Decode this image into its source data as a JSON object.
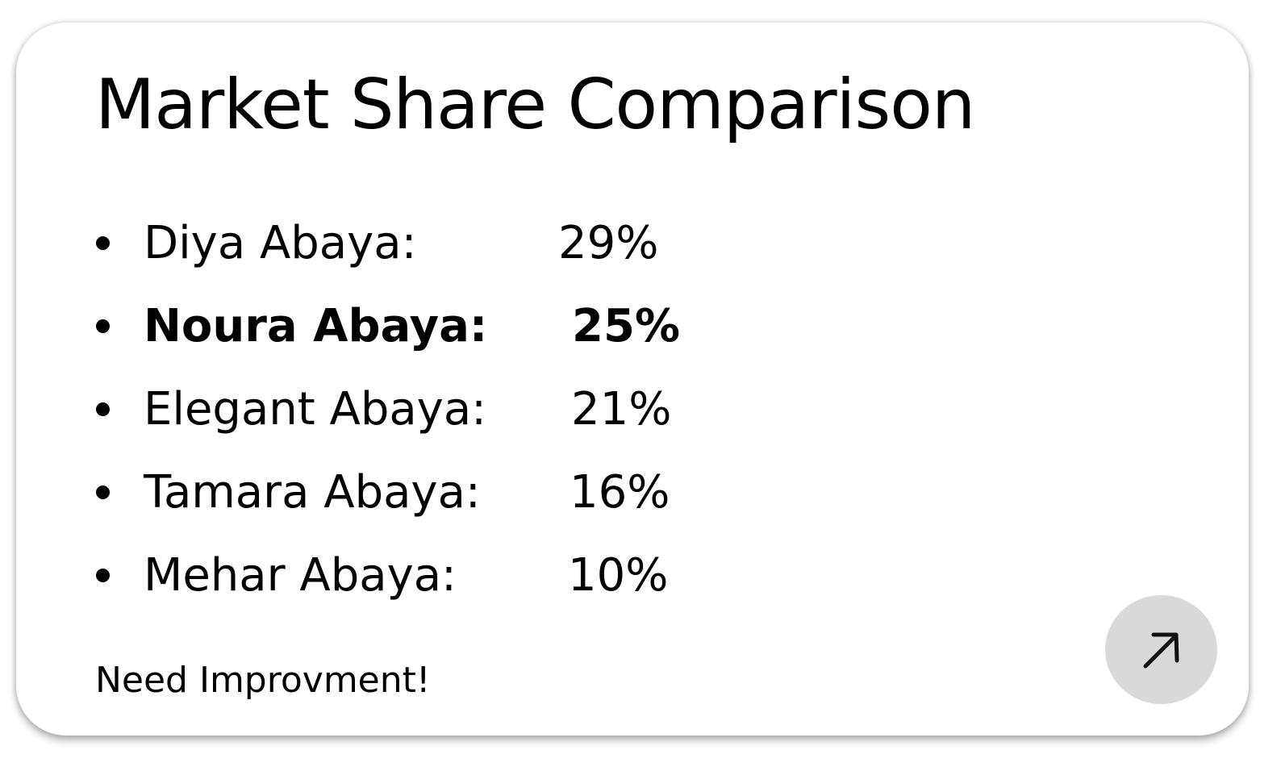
{
  "card": {
    "title": "Market Share Comparison",
    "shares": [
      {
        "name": "Diya Abaya:",
        "value": "29%"
      },
      {
        "name": "Noura Abaya:",
        "value": "25%"
      },
      {
        "name": "Elegant Abaya:",
        "value": "21%"
      },
      {
        "name": "Tamara Abaya:",
        "value": "16%"
      },
      {
        "name": "Mehar Abaya:",
        "value": "10%"
      }
    ],
    "note": "Need Improvment!",
    "open_button": {
      "icon": "arrow-up-right-icon",
      "color": "#d9d9d9"
    }
  }
}
